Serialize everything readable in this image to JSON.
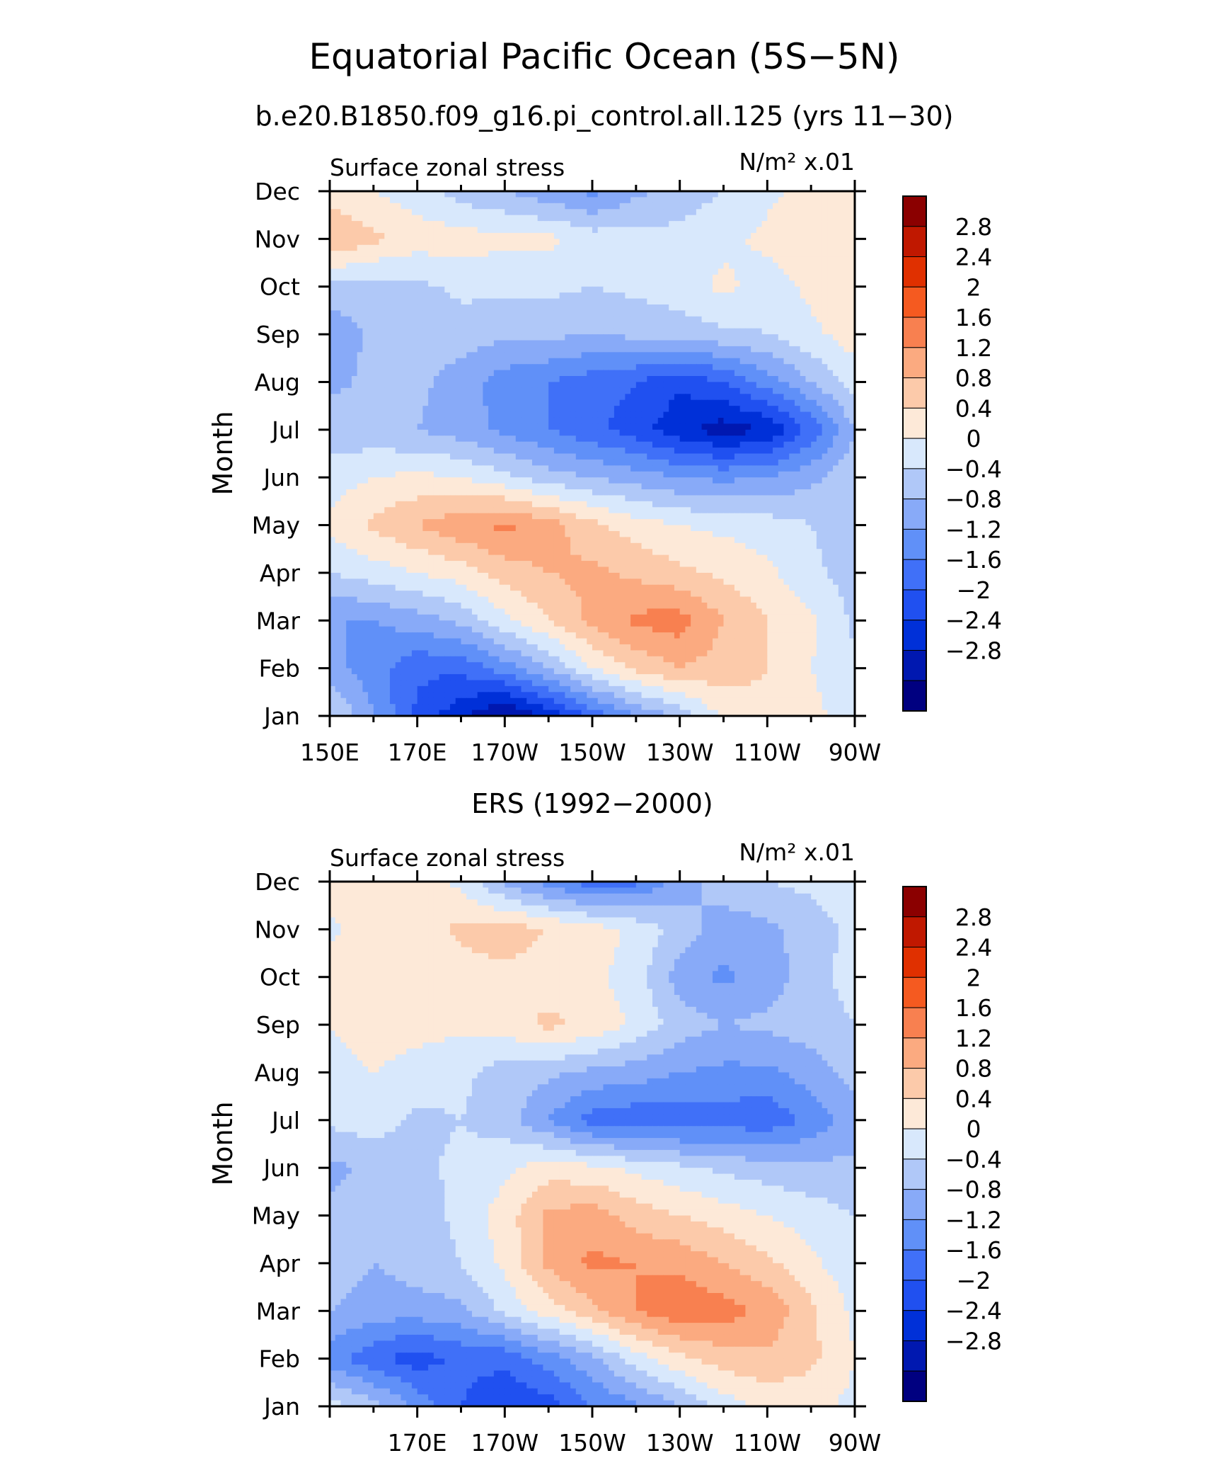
{
  "title": "Equatorial Pacific Ocean (5S−5N)",
  "subtitle": "b.e20.B1850.f09_g16.pi_control.all.125 (yrs 11−30)",
  "colors": [
    "#000080",
    "#0018b0",
    "#0030d8",
    "#2050f0",
    "#4070f8",
    "#6090f8",
    "#88aaf8",
    "#b0c8f8",
    "#d8e8fc",
    "#fde9d8",
    "#fccaaa",
    "#fbaa80",
    "#f88050",
    "#f55a20",
    "#e03000",
    "#c01800",
    "#8b0000"
  ],
  "colorbar": {
    "labels": [
      "2.8",
      "2.4",
      "2",
      "1.6",
      "1.2",
      "0.8",
      "0.4",
      "0",
      "−0.4",
      "−0.8",
      "−1.2",
      "−1.6",
      "−2",
      "−2.4",
      "−2.8"
    ]
  },
  "chart_data": [
    {
      "type": "heatmap",
      "panel_title": "",
      "left_label": "Surface zonal stress",
      "right_label": "N/m² x.01",
      "ylabel": "Month",
      "xlim": [
        150,
        270
      ],
      "xticks": [
        {
          "value": 150,
          "label": "150E"
        },
        {
          "value": 170,
          "label": "170E"
        },
        {
          "value": 190,
          "label": "170W"
        },
        {
          "value": 210,
          "label": "150W"
        },
        {
          "value": 230,
          "label": "130W"
        },
        {
          "value": 250,
          "label": "110W"
        },
        {
          "value": 270,
          "label": "90W"
        }
      ],
      "months": [
        "Jan",
        "Feb",
        "Mar",
        "Apr",
        "May",
        "Jun",
        "Jul",
        "Aug",
        "Sep",
        "Oct",
        "Nov",
        "Dec"
      ],
      "lon": [
        150,
        160,
        170,
        180,
        190,
        200,
        210,
        220,
        230,
        240,
        250,
        260,
        270
      ],
      "values": [
        [
          0.1,
          -0.8,
          -1.7,
          -2.3,
          -2.9,
          -2.3,
          -1.5,
          -0.8,
          -0.3,
          0.5,
          0.7,
          0.5,
          0.2
        ],
        [
          -0.7,
          -1.0,
          -1.5,
          -1.5,
          -1.0,
          -0.4,
          0.4,
          0.9,
          1.2,
          1.0,
          0.8,
          0.4,
          0.1
        ],
        [
          -0.8,
          -0.8,
          -0.6,
          -0.3,
          0.3,
          0.8,
          1.3,
          1.7,
          1.8,
          1.2,
          0.8,
          0.5,
          -0.1
        ],
        [
          0.0,
          0.2,
          0.4,
          0.6,
          1.0,
          1.2,
          1.3,
          1.1,
          0.9,
          0.7,
          0.5,
          0.1,
          -0.2
        ],
        [
          0.5,
          0.9,
          1.2,
          1.5,
          1.7,
          1.4,
          0.9,
          0.6,
          0.4,
          0.3,
          0.2,
          0.0,
          -0.2
        ],
        [
          0.2,
          0.4,
          0.5,
          0.4,
          0.1,
          -0.2,
          -0.4,
          -0.6,
          -0.8,
          -0.9,
          -0.8,
          -0.5,
          -0.1
        ],
        [
          -0.2,
          -0.3,
          -0.4,
          -0.6,
          -0.9,
          -1.2,
          -1.5,
          -1.8,
          -2.3,
          -2.6,
          -2.4,
          -1.5,
          -0.4
        ],
        [
          -0.5,
          -0.3,
          -0.3,
          -0.6,
          -1.0,
          -1.2,
          -1.4,
          -1.6,
          -1.9,
          -1.6,
          -1.0,
          -0.4,
          0.2
        ],
        [
          -0.7,
          -0.3,
          -0.2,
          -0.2,
          -0.3,
          -0.3,
          -0.4,
          -0.3,
          -0.2,
          -0.1,
          0.0,
          0.3,
          0.6
        ],
        [
          -0.1,
          -0.2,
          -0.1,
          0.1,
          0.1,
          0.1,
          0.0,
          0.1,
          0.2,
          0.5,
          0.2,
          0.5,
          0.7
        ],
        [
          1.2,
          0.9,
          0.6,
          0.6,
          0.5,
          0.5,
          0.2,
          0.2,
          0.1,
          0.3,
          0.5,
          0.7,
          0.8
        ],
        [
          0.6,
          0.4,
          0.2,
          -0.2,
          -0.4,
          -0.7,
          -0.9,
          -0.5,
          -0.2,
          0.0,
          0.3,
          0.5,
          0.5
        ]
      ]
    },
    {
      "type": "heatmap",
      "panel_title": "ERS (1992−2000)",
      "left_label": "Surface zonal stress",
      "right_label": "N/m² x.01",
      "ylabel": "Month",
      "xlim": [
        150,
        270
      ],
      "xticks": [
        {
          "value": 170,
          "label": "170E"
        },
        {
          "value": 190,
          "label": "170W"
        },
        {
          "value": 210,
          "label": "150W"
        },
        {
          "value": 230,
          "label": "130W"
        },
        {
          "value": 250,
          "label": "110W"
        },
        {
          "value": 270,
          "label": "90W"
        }
      ],
      "months": [
        "Jan",
        "Feb",
        "Mar",
        "Apr",
        "May",
        "Jun",
        "Jul",
        "Aug",
        "Sep",
        "Oct",
        "Nov",
        "Dec"
      ],
      "lon": [
        150,
        160,
        170,
        180,
        190,
        200,
        210,
        220,
        230,
        240,
        250,
        260,
        270
      ],
      "values": [
        [
          0.2,
          -0.2,
          -0.9,
          -1.6,
          -1.9,
          -1.8,
          -1.2,
          -0.9,
          -0.4,
          0.2,
          0.5,
          0.5,
          0.3
        ],
        [
          -1.0,
          -1.5,
          -1.8,
          -1.5,
          -1.5,
          -1.0,
          -0.5,
          0.2,
          0.7,
          1.0,
          1.1,
          0.9,
          0.4
        ],
        [
          -0.4,
          -0.6,
          -0.6,
          -0.5,
          0.1,
          0.6,
          1.1,
          1.6,
          1.9,
          1.8,
          1.5,
          0.9,
          0.3
        ],
        [
          -0.2,
          -0.4,
          -0.2,
          0.0,
          0.5,
          1.3,
          1.7,
          1.6,
          1.5,
          1.2,
          0.9,
          0.5,
          0.1
        ],
        [
          -0.3,
          -0.3,
          -0.2,
          0.1,
          0.6,
          1.3,
          1.4,
          1.0,
          0.8,
          0.6,
          0.4,
          0.2,
          0.0
        ],
        [
          -0.5,
          -0.3,
          -0.1,
          0.1,
          0.3,
          0.6,
          0.5,
          0.3,
          0.1,
          -0.1,
          -0.2,
          -0.3,
          -0.3
        ],
        [
          0.1,
          0.2,
          -0.1,
          0.0,
          -0.2,
          -0.8,
          -1.4,
          -1.5,
          -1.5,
          -1.4,
          -1.5,
          -1.1,
          -0.6
        ],
        [
          0.3,
          0.4,
          0.3,
          0.1,
          -0.2,
          -0.3,
          -0.5,
          -0.6,
          -0.8,
          -0.9,
          -0.9,
          -0.6,
          -0.2
        ],
        [
          0.4,
          0.5,
          0.5,
          0.5,
          0.6,
          0.9,
          0.7,
          0.3,
          -0.2,
          -0.4,
          -0.3,
          -0.2,
          0.0
        ],
        [
          0.6,
          0.6,
          0.6,
          0.6,
          0.7,
          0.6,
          0.5,
          0.2,
          -0.6,
          -0.9,
          -0.6,
          -0.2,
          0.2
        ],
        [
          0.3,
          0.7,
          0.6,
          0.9,
          1.0,
          0.8,
          0.6,
          0.3,
          -0.2,
          -0.6,
          -0.5,
          -0.2,
          0.1
        ],
        [
          0.7,
          0.8,
          0.6,
          0.3,
          -0.5,
          -1.0,
          -1.4,
          -1.3,
          -0.6,
          -0.2,
          0.0,
          0.1,
          0.3
        ]
      ]
    }
  ]
}
